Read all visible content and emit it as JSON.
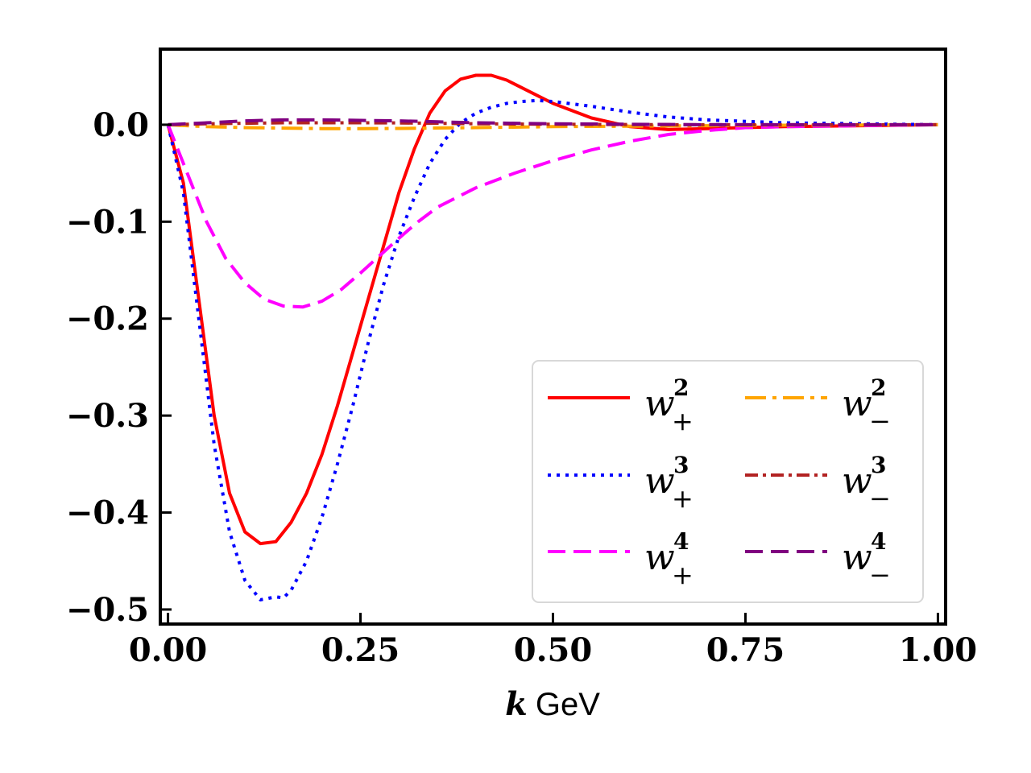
{
  "chart_data": {
    "type": "line",
    "xlabel_var": "k",
    "xlabel_unit": "GeV",
    "xlim": [
      -0.01,
      1.01
    ],
    "ylim": [
      -0.515,
      0.078
    ],
    "xticks": [
      0.0,
      0.25,
      0.5,
      0.75,
      1.0
    ],
    "xtick_labels": [
      "0.00",
      "0.25",
      "0.50",
      "0.75",
      "1.00"
    ],
    "yticks": [
      0.0,
      -0.1,
      -0.2,
      -0.3,
      -0.4,
      -0.5
    ],
    "ytick_labels": [
      "0.0",
      "−0.1",
      "−0.2",
      "−0.3",
      "−0.4",
      "−0.5"
    ],
    "grid": false,
    "legend_position": "lower-right",
    "series": [
      {
        "name": "w+2",
        "base": "w",
        "sup": "2",
        "sub": "+",
        "color": "#ff0000",
        "dash": "solid",
        "x": [
          0.0,
          0.02,
          0.04,
          0.06,
          0.08,
          0.1,
          0.12,
          0.14,
          0.16,
          0.18,
          0.2,
          0.22,
          0.24,
          0.26,
          0.28,
          0.3,
          0.32,
          0.34,
          0.36,
          0.38,
          0.4,
          0.42,
          0.44,
          0.46,
          0.48,
          0.5,
          0.55,
          0.6,
          0.65,
          0.7,
          0.8,
          0.9,
          1.0
        ],
        "y": [
          0.0,
          -0.06,
          -0.18,
          -0.3,
          -0.38,
          -0.42,
          -0.432,
          -0.43,
          -0.41,
          -0.38,
          -0.34,
          -0.29,
          -0.235,
          -0.18,
          -0.125,
          -0.07,
          -0.025,
          0.012,
          0.035,
          0.047,
          0.051,
          0.051,
          0.046,
          0.038,
          0.03,
          0.022,
          0.007,
          -0.002,
          -0.005,
          -0.004,
          -0.002,
          -0.001,
          0.0
        ]
      },
      {
        "name": "w+3",
        "base": "w",
        "sup": "3",
        "sub": "+",
        "color": "#0000ff",
        "dash": "dotted",
        "x": [
          0.0,
          0.02,
          0.04,
          0.06,
          0.08,
          0.1,
          0.12,
          0.14,
          0.15,
          0.16,
          0.18,
          0.2,
          0.22,
          0.24,
          0.26,
          0.28,
          0.3,
          0.32,
          0.34,
          0.36,
          0.38,
          0.4,
          0.42,
          0.44,
          0.46,
          0.48,
          0.5,
          0.55,
          0.6,
          0.65,
          0.7,
          0.8,
          0.9,
          1.0
        ],
        "y": [
          0.0,
          -0.07,
          -0.2,
          -0.33,
          -0.42,
          -0.47,
          -0.49,
          -0.487,
          -0.488,
          -0.48,
          -0.45,
          -0.405,
          -0.35,
          -0.29,
          -0.225,
          -0.165,
          -0.115,
          -0.075,
          -0.04,
          -0.015,
          0.002,
          0.012,
          0.018,
          0.022,
          0.024,
          0.025,
          0.024,
          0.019,
          0.013,
          0.008,
          0.005,
          0.002,
          0.001,
          0.0
        ]
      },
      {
        "name": "w+4",
        "base": "w",
        "sup": "4",
        "sub": "+",
        "color": "#ff00ff",
        "dash": "dashed",
        "x": [
          0.0,
          0.025,
          0.05,
          0.075,
          0.1,
          0.125,
          0.15,
          0.175,
          0.2,
          0.225,
          0.25,
          0.275,
          0.3,
          0.325,
          0.35,
          0.4,
          0.45,
          0.5,
          0.55,
          0.6,
          0.65,
          0.7,
          0.75,
          0.8,
          0.9,
          1.0
        ],
        "y": [
          0.0,
          -0.05,
          -0.1,
          -0.138,
          -0.163,
          -0.18,
          -0.187,
          -0.188,
          -0.182,
          -0.17,
          -0.153,
          -0.135,
          -0.117,
          -0.1,
          -0.085,
          -0.065,
          -0.05,
          -0.037,
          -0.026,
          -0.017,
          -0.01,
          -0.006,
          -0.003,
          -0.002,
          -0.001,
          0.0
        ]
      },
      {
        "name": "w-2",
        "base": "w",
        "sup": "2",
        "sub": "−",
        "color": "#ffa500",
        "dash": "dashdot",
        "x": [
          0.0,
          0.05,
          0.1,
          0.15,
          0.2,
          0.25,
          0.3,
          0.4,
          0.5,
          0.6,
          0.7,
          0.8,
          0.9,
          1.0
        ],
        "y": [
          0.0,
          -0.002,
          -0.003,
          -0.0035,
          -0.004,
          -0.004,
          -0.0038,
          -0.003,
          -0.002,
          -0.0015,
          -0.001,
          -0.0005,
          -0.0002,
          0.0
        ]
      },
      {
        "name": "w-3",
        "base": "w",
        "sup": "3",
        "sub": "−",
        "color": "#b22222",
        "dash": "dashdot-tight",
        "x": [
          0.0,
          0.05,
          0.1,
          0.15,
          0.2,
          0.25,
          0.3,
          0.35,
          0.4,
          0.5,
          0.6,
          0.7,
          0.8,
          0.9,
          1.0
        ],
        "y": [
          0.0,
          0.001,
          0.0015,
          0.002,
          0.002,
          0.002,
          0.0018,
          0.0015,
          0.001,
          0.0005,
          0.0002,
          0.0,
          0.0,
          0.0,
          0.0
        ]
      },
      {
        "name": "w-4",
        "base": "w",
        "sup": "4",
        "sub": "−",
        "color": "#800080",
        "dash": "dashed",
        "x": [
          0.0,
          0.05,
          0.1,
          0.15,
          0.2,
          0.25,
          0.3,
          0.35,
          0.4,
          0.5,
          0.6,
          0.7,
          0.8,
          0.9,
          1.0
        ],
        "y": [
          0.0,
          0.002,
          0.004,
          0.005,
          0.005,
          0.0045,
          0.004,
          0.003,
          0.002,
          0.001,
          0.0005,
          0.0,
          0.0,
          0.0,
          0.0
        ]
      }
    ]
  }
}
